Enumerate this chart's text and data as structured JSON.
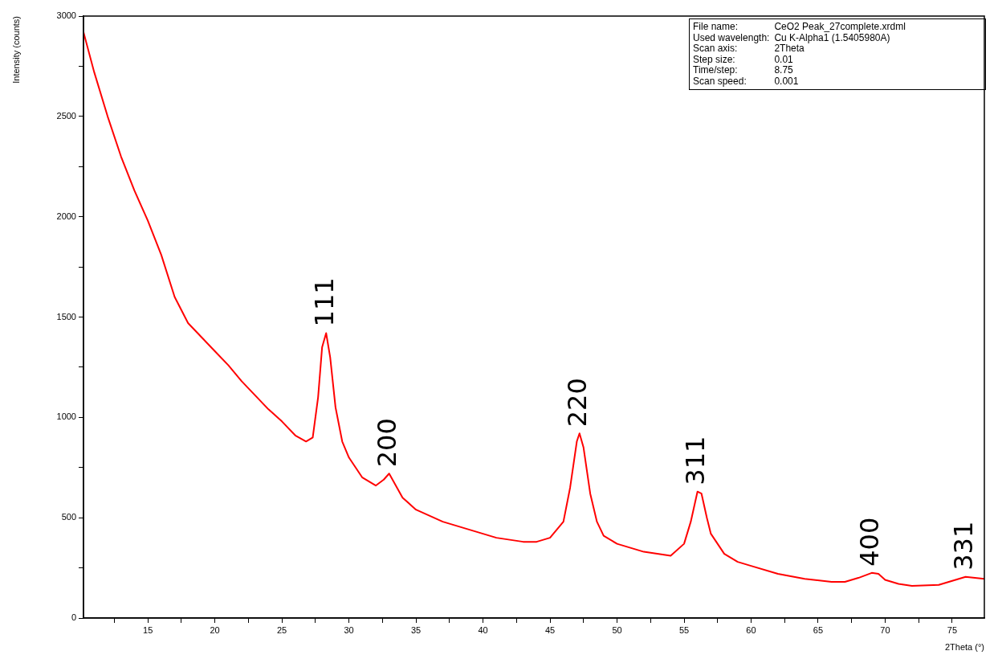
{
  "chart_data": {
    "type": "line",
    "xlabel": "2Theta (°)",
    "ylabel": "Intensity (counts)",
    "xlim": [
      10.2,
      77.4
    ],
    "ylim": [
      0,
      3000
    ],
    "xticks": [
      {
        "value": 12.5,
        "label": null
      },
      15,
      {
        "value": 17.5,
        "label": null
      },
      20,
      {
        "value": 22.5,
        "label": null
      },
      25,
      {
        "value": 27.5,
        "label": null
      },
      30,
      {
        "value": 32.5,
        "label": null
      },
      35,
      {
        "value": 37.5,
        "label": null
      },
      40,
      {
        "value": 42.5,
        "label": null
      },
      45,
      {
        "value": 47.5,
        "label": null
      },
      50,
      {
        "value": 52.5,
        "label": null
      },
      55,
      {
        "value": 57.5,
        "label": null
      },
      60,
      {
        "value": 62.5,
        "label": null
      },
      65,
      {
        "value": 67.5,
        "label": null
      },
      70,
      {
        "value": 72.5,
        "label": null
      },
      75
    ],
    "yticks": [
      0,
      {
        "value": 250,
        "label": null
      },
      500,
      {
        "value": 750,
        "label": null
      },
      1000,
      {
        "value": 1250,
        "label": null
      },
      1500,
      {
        "value": 1750,
        "label": null
      },
      2000,
      {
        "value": 2250,
        "label": null
      },
      2500,
      {
        "value": 2750,
        "label": null
      },
      3000
    ],
    "grid": false,
    "legend": false,
    "marker": "none",
    "line_style": "solid",
    "x": [
      10.2,
      11,
      12,
      13,
      14,
      15,
      16,
      17,
      18,
      19,
      20,
      21,
      22,
      23,
      24,
      25,
      26,
      26.8,
      27.3,
      27.7,
      28,
      28.3,
      28.6,
      29,
      29.5,
      30,
      31,
      32,
      32.6,
      33,
      33.5,
      34,
      35,
      36,
      37,
      38,
      39,
      40,
      41,
      42,
      43,
      44,
      45,
      46,
      46.5,
      47,
      47.2,
      47.5,
      48,
      48.5,
      49,
      50,
      51,
      52,
      53,
      54,
      55,
      55.5,
      56,
      56.3,
      56.7,
      57,
      58,
      59,
      60,
      62,
      64,
      66,
      67,
      68,
      69,
      69.5,
      70,
      71,
      72,
      74,
      75,
      76,
      77.4
    ],
    "series": [
      {
        "color": "#ff0000",
        "values": [
          2920,
          2720,
          2500,
          2300,
          2130,
          1980,
          1810,
          1600,
          1470,
          1400,
          1330,
          1260,
          1180,
          1110,
          1040,
          980,
          910,
          880,
          900,
          1100,
          1350,
          1420,
          1300,
          1050,
          880,
          800,
          700,
          660,
          690,
          720,
          660,
          600,
          540,
          510,
          480,
          460,
          440,
          420,
          400,
          390,
          380,
          380,
          400,
          480,
          650,
          880,
          920,
          850,
          620,
          480,
          410,
          370,
          350,
          330,
          320,
          310,
          370,
          480,
          630,
          620,
          500,
          420,
          320,
          280,
          260,
          220,
          195,
          180,
          180,
          200,
          225,
          220,
          190,
          170,
          160,
          165,
          185,
          205,
          195
        ]
      }
    ],
    "annotations": [
      {
        "text": "111",
        "x": 28.3,
        "y": 1420
      },
      {
        "text": "200",
        "x": 33,
        "y": 720
      },
      {
        "text": "220",
        "x": 47.2,
        "y": 920
      },
      {
        "text": "311",
        "x": 56,
        "y": 630
      },
      {
        "text": "400",
        "x": 69,
        "y": 225
      },
      {
        "text": "331",
        "x": 76,
        "y": 205
      },
      "File name:\tCeO2 Peak_27complete.xrdml",
      "Used wavelength:\tCu K-Alpha1 (1.5405980A)",
      "Scan axis:\t2Theta",
      "Step size:\t0.01",
      "Time/step:\t8.75",
      "Scan speed:\t0.001"
    ]
  }
}
